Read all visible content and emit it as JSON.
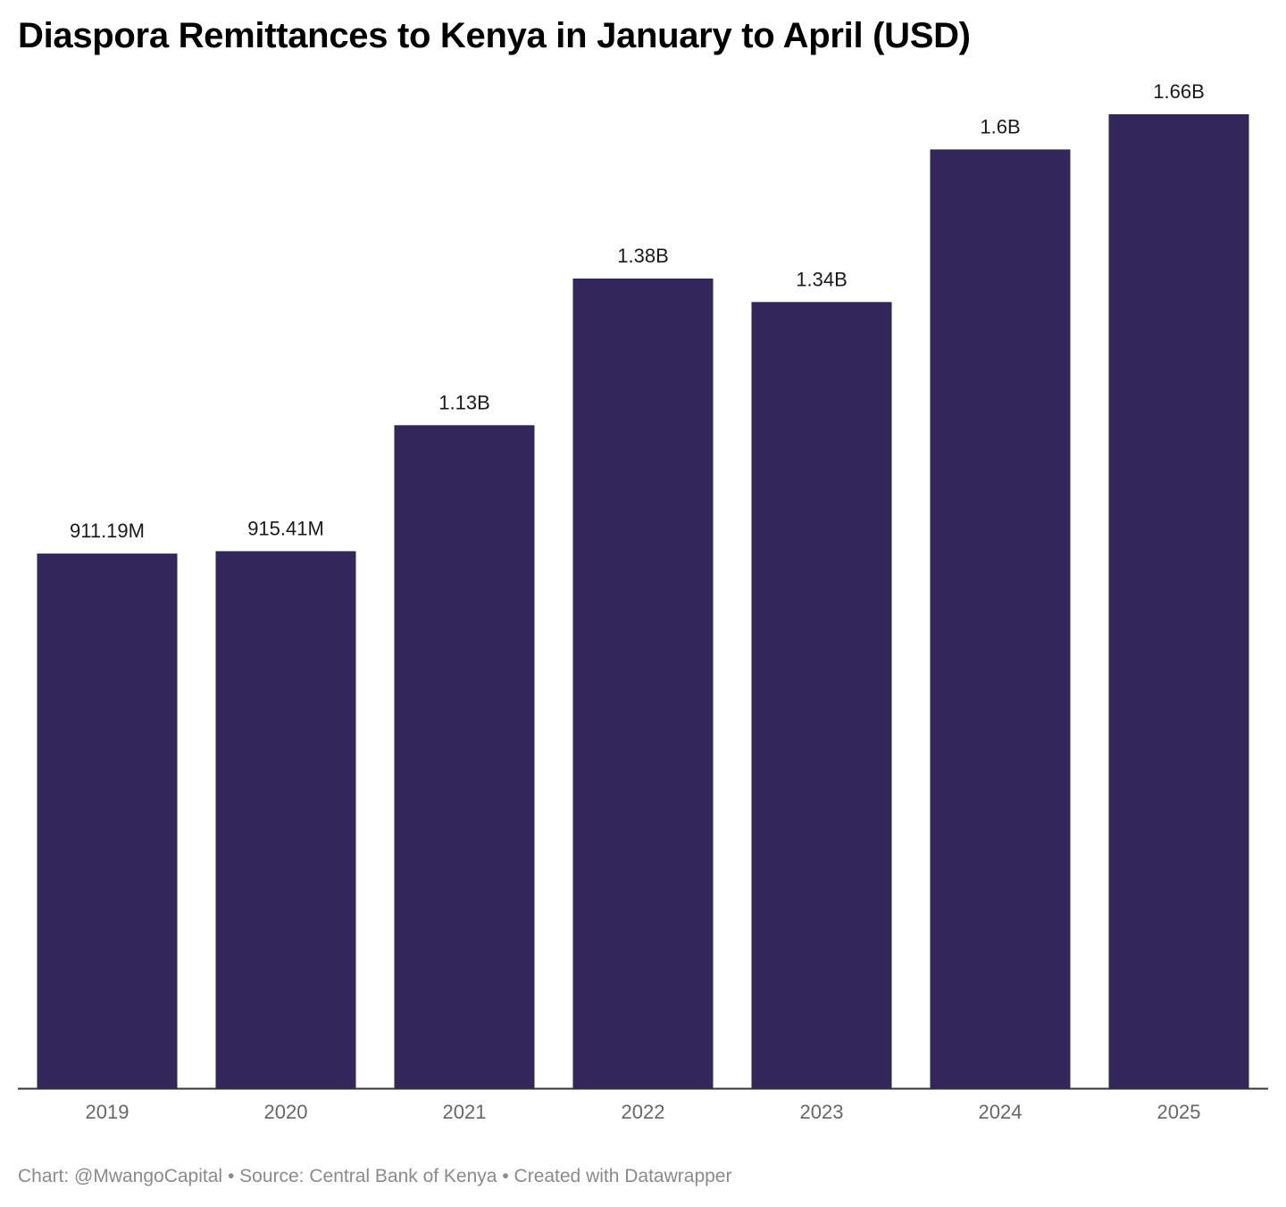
{
  "title": "Diaspora Remittances to Kenya in January to April (USD)",
  "footer": {
    "chart_credit": "Chart: @MwangoCapital",
    "separator": "•",
    "source": "Source: Central Bank of Kenya",
    "created_with": "Created with Datawrapper"
  },
  "colors": {
    "bar": "#32265a",
    "axis": "#333333"
  },
  "chart_data": {
    "type": "bar",
    "title": "Diaspora Remittances to Kenya in January to April (USD)",
    "xlabel": "",
    "ylabel": "",
    "categories": [
      "2019",
      "2020",
      "2021",
      "2022",
      "2023",
      "2024",
      "2025"
    ],
    "values": [
      911190000,
      915410000,
      1130000000,
      1380000000,
      1340000000,
      1600000000,
      1660000000
    ],
    "value_labels": [
      "911.19M",
      "915.41M",
      "1.13B",
      "1.38B",
      "1.34B",
      "1.6B",
      "1.66B"
    ],
    "ylim": [
      0,
      1660000000
    ],
    "grid": false,
    "legend": "none"
  }
}
